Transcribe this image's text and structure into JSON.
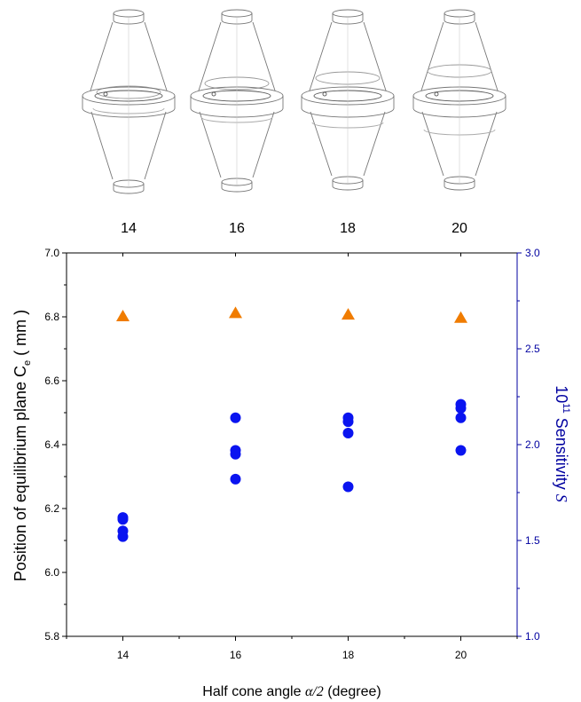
{
  "top_labels": [
    "14",
    "16",
    "18",
    "20"
  ],
  "chart_data": {
    "type": "scatter",
    "x_ticks": [
      "14",
      "16",
      "18",
      "20"
    ],
    "xlim": [
      13,
      21
    ],
    "xlabel_prefix": "Half cone angle ",
    "xlabel_symbol": "α/2",
    "xlabel_suffix": "  (degree)",
    "ylabel_main": "Position of equilibrium plane C",
    "ylabel_sub": "e",
    "ylabel_unit": "  ( mm )",
    "ylim": [
      5.8,
      7.0
    ],
    "y_ticks": [
      "5.8",
      "6.0",
      "6.2",
      "6.4",
      "6.6",
      "6.8",
      "7.0"
    ],
    "y2label_exp_base": "10",
    "y2label_exp": "11",
    "y2label_text": " Sensitivity  ",
    "y2label_symbol": "S",
    "y2lim": [
      1.0,
      3.0
    ],
    "y2_ticks": [
      "1.0",
      "1.5",
      "2.0",
      "2.5",
      "3.0"
    ],
    "series": [
      {
        "axis": "left",
        "marker": "triangle",
        "color": "#f07c00",
        "points": [
          [
            14,
            6.8
          ],
          [
            16,
            6.81
          ],
          [
            18,
            6.805
          ],
          [
            20,
            6.795
          ]
        ]
      },
      {
        "axis": "right",
        "marker": "circle",
        "color": "#0a14f0",
        "points": [
          [
            14,
            1.62
          ],
          [
            14,
            1.61
          ],
          [
            14,
            1.55
          ],
          [
            14,
            1.52
          ],
          [
            16,
            2.14
          ],
          [
            16,
            1.97
          ],
          [
            16,
            1.95
          ],
          [
            16,
            1.82
          ],
          [
            18,
            2.14
          ],
          [
            18,
            2.12
          ],
          [
            18,
            2.06
          ],
          [
            18,
            1.78
          ],
          [
            20,
            2.21
          ],
          [
            20,
            2.19
          ],
          [
            20,
            2.14
          ],
          [
            20,
            1.97
          ]
        ]
      }
    ],
    "grid": false,
    "legend": "none",
    "left_axis_color": "#000000",
    "right_axis_color": "#0000a0"
  }
}
